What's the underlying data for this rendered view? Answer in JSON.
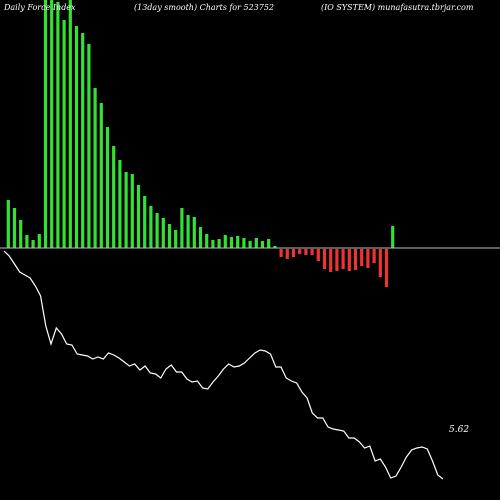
{
  "header": {
    "left": "Daily Force Index",
    "center": "(13day smooth) Charts for 523752",
    "right": "(IO SYSTEM) munafasutra.tbrjar.com"
  },
  "chart_data": [
    {
      "type": "bar",
      "name": "force-index-bars",
      "values": [
        48,
        40,
        28,
        13,
        8,
        14,
        280,
        265,
        246,
        228,
        252,
        222,
        215,
        204,
        160,
        145,
        121,
        102,
        88,
        76,
        74,
        63,
        52,
        42,
        35,
        30,
        24,
        18,
        40,
        33,
        31,
        21,
        14,
        8,
        9,
        13,
        11,
        12,
        10,
        7,
        10,
        7,
        9,
        2,
        -8,
        -10,
        -8,
        -5,
        -6,
        -6,
        -12,
        -20,
        -23,
        -22,
        -20,
        -22,
        -21,
        -17,
        -19,
        -14,
        -28,
        -38,
        22
      ],
      "ylim": [
        -60,
        280
      ],
      "colors": {
        "positive": "#33e033",
        "negative": "#ee3333"
      }
    },
    {
      "type": "line",
      "name": "price-line",
      "y": [
        -3,
        -8,
        -16,
        -24,
        -27,
        -30,
        -38,
        -48,
        -78,
        -96,
        -80,
        -86,
        -96,
        -97,
        -106,
        -107,
        -108,
        -111,
        -109,
        -111,
        -105,
        -107,
        -110,
        -114,
        -118,
        -116,
        -122,
        -118,
        -125,
        -126,
        -130,
        -121,
        -117,
        -124,
        -124,
        -131,
        -134,
        -133,
        -140,
        -141,
        -134,
        -128,
        -121,
        -116,
        -119,
        -118,
        -115,
        -110,
        -105,
        -102,
        -103,
        -106,
        -119,
        -119,
        -130,
        -133,
        -135,
        -144,
        -150,
        -165,
        -170,
        -170,
        -179,
        -181,
        -182,
        -183,
        -190,
        -190,
        -194,
        -200,
        -198,
        -213,
        -211,
        -219,
        -230,
        -228,
        -219,
        -209,
        -202,
        -200,
        -199,
        -201,
        -213,
        -227,
        -231
      ],
      "ylim": [
        -240,
        0
      ],
      "color": "#ffffff",
      "last_value_label": "5.62"
    }
  ]
}
